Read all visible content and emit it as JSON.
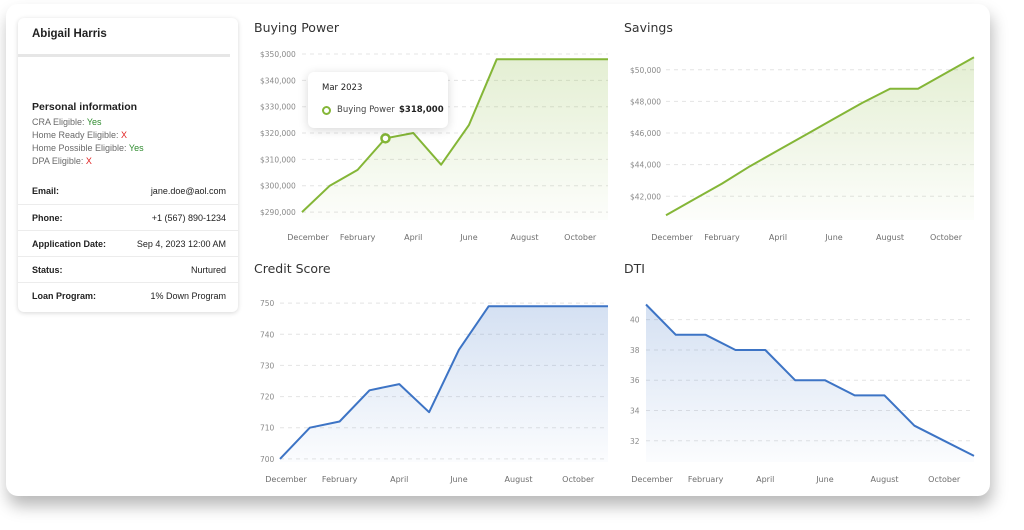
{
  "applicant": {
    "name": "Abigail Harris",
    "section_title": "Personal information",
    "eligibility": [
      {
        "label": "CRA Eligible: ",
        "value": "Yes"
      },
      {
        "label": "Home Ready Eligible: ",
        "value": "X"
      },
      {
        "label": "Home Possible Eligible: ",
        "value": "Yes"
      },
      {
        "label": "DPA Eligible: ",
        "value": "X"
      }
    ],
    "details": [
      {
        "label": "Email:",
        "value": "jane.doe@aol.com"
      },
      {
        "label": "Phone:",
        "value": "+1 (567) 890-1234"
      },
      {
        "label": "Application Date:",
        "value": "Sep 4, 2023 12:00 AM"
      },
      {
        "label": "Status:",
        "value": "Nurtured"
      },
      {
        "label": "Loan Program:",
        "value": "1% Down Program"
      }
    ]
  },
  "tooltip": {
    "date": "Mar 2023",
    "series": "Buying Power",
    "value": "$318,000"
  },
  "colors": {
    "green": "#84b637",
    "blue": "#3d74c5",
    "yes": "#2e8b2e",
    "no": "#e02020"
  },
  "chart_data": [
    {
      "type": "area",
      "title": "Buying Power",
      "x_ticks": [
        "December",
        "February",
        "April",
        "June",
        "August",
        "October"
      ],
      "y_ticks": [
        "$290,000",
        "$300,000",
        "$310,000",
        "$320,000",
        "$330,000",
        "$340,000",
        "$350,000"
      ],
      "ylim": [
        287000,
        350000
      ],
      "x": [
        "Dec 2022",
        "Jan 2023",
        "Feb 2023",
        "Mar 2023",
        "Apr 2023",
        "May 2023",
        "Jun 2023",
        "Jul 2023",
        "Aug 2023",
        "Sep 2023",
        "Oct 2023",
        "Nov 2023"
      ],
      "values": [
        290000,
        300000,
        306000,
        318000,
        320000,
        308000,
        323000,
        348000,
        348000,
        348000,
        348000,
        348000
      ],
      "color": "#84b637",
      "grid": true
    },
    {
      "type": "area",
      "title": "Savings",
      "x_ticks": [
        "December",
        "February",
        "April",
        "June",
        "August",
        "October"
      ],
      "y_ticks": [
        "$42,000",
        "$44,000",
        "$46,000",
        "$48,000",
        "$50,000"
      ],
      "ylim": [
        40500,
        51000
      ],
      "x": [
        "Dec 2022",
        "Jan 2023",
        "Feb 2023",
        "Mar 2023",
        "Apr 2023",
        "May 2023",
        "Jun 2023",
        "Jul 2023",
        "Aug 2023",
        "Sep 2023",
        "Oct 2023",
        "Nov 2023"
      ],
      "values": [
        40800,
        41800,
        42800,
        43900,
        44900,
        45900,
        46900,
        47900,
        48800,
        48800,
        49800,
        50800
      ],
      "color": "#84b637",
      "grid": true
    },
    {
      "type": "area",
      "title": "Credit Score",
      "x_ticks": [
        "December",
        "February",
        "April",
        "June",
        "August",
        "October"
      ],
      "y_ticks": [
        "700",
        "710",
        "720",
        "730",
        "740",
        "750"
      ],
      "ylim": [
        699,
        751
      ],
      "x": [
        "Dec 2022",
        "Jan 2023",
        "Feb 2023",
        "Mar 2023",
        "Apr 2023",
        "May 2023",
        "Jun 2023",
        "Jul 2023",
        "Aug 2023",
        "Sep 2023",
        "Oct 2023",
        "Nov 2023"
      ],
      "values": [
        700,
        710,
        712,
        722,
        724,
        715,
        735,
        749,
        749,
        749,
        749,
        749
      ],
      "color": "#3d74c5",
      "grid": true
    },
    {
      "type": "area",
      "title": "DTI",
      "x_ticks": [
        "December",
        "February",
        "April",
        "June",
        "August",
        "October"
      ],
      "y_ticks": [
        "32",
        "34",
        "36",
        "38",
        "40"
      ],
      "ylim": [
        30.6,
        41.3
      ],
      "x": [
        "Dec 2022",
        "Jan 2023",
        "Feb 2023",
        "Mar 2023",
        "Apr 2023",
        "May 2023",
        "Jun 2023",
        "Jul 2023",
        "Aug 2023",
        "Sep 2023",
        "Oct 2023",
        "Nov 2023"
      ],
      "values": [
        41,
        39,
        39,
        38,
        38,
        36,
        36,
        35,
        35,
        33,
        32,
        31
      ],
      "color": "#3d74c5",
      "grid": true
    }
  ]
}
